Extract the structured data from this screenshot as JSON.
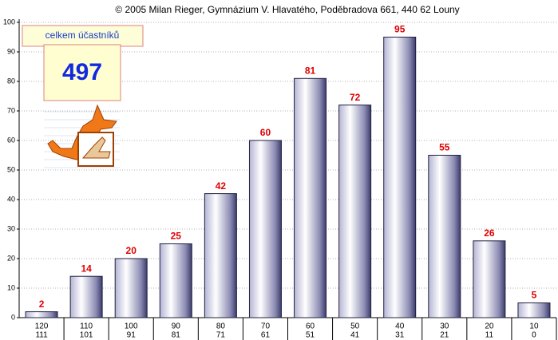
{
  "chart_data": {
    "type": "bar",
    "title": "© 2005 Milan Rieger, Gymnázium V. Hlavatého, Poděbradova 661, 440 62 Louny",
    "total_label": "celkem účastníků",
    "total": 497,
    "categories": [
      [
        "120",
        "111"
      ],
      [
        "110",
        "101"
      ],
      [
        "100",
        "91"
      ],
      [
        "90",
        "81"
      ],
      [
        "80",
        "71"
      ],
      [
        "70",
        "61"
      ],
      [
        "60",
        "51"
      ],
      [
        "50",
        "41"
      ],
      [
        "40",
        "31"
      ],
      [
        "30",
        "21"
      ],
      [
        "20",
        "11"
      ],
      [
        "10",
        "0"
      ]
    ],
    "values": [
      2,
      14,
      20,
      25,
      42,
      60,
      81,
      72,
      95,
      55,
      26,
      5
    ],
    "value_color": "#e00000",
    "ylim": [
      0,
      100
    ],
    "yticks": [
      0,
      10,
      20,
      30,
      40,
      50,
      60,
      70,
      80,
      90,
      100
    ],
    "grid": true
  }
}
